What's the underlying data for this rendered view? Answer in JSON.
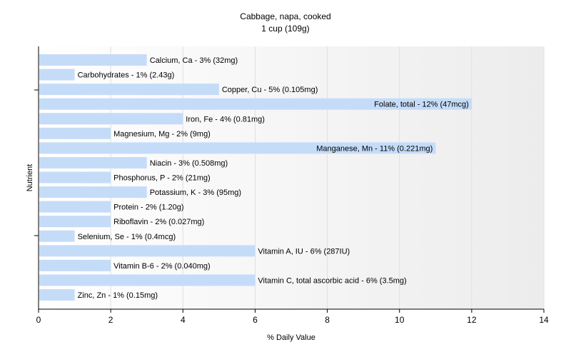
{
  "chart_data": {
    "type": "bar",
    "orientation": "horizontal",
    "title": "Cabbage, napa, cooked",
    "subtitle": "1 cup (109g)",
    "xlabel": "% Daily Value",
    "ylabel": "Nutrient",
    "xlim": [
      0,
      14
    ],
    "xticks": [
      0,
      2,
      4,
      6,
      8,
      10,
      12,
      14
    ],
    "grid": false,
    "legend": "none",
    "bar_color": "#c5dcf9",
    "categories": [
      "Calcium, Ca",
      "Carbohydrates",
      "Copper, Cu",
      "Folate, total",
      "Iron, Fe",
      "Magnesium, Mg",
      "Manganese, Mn",
      "Niacin",
      "Phosphorus, P",
      "Potassium, K",
      "Protein",
      "Riboflavin",
      "Selenium, Se",
      "Vitamin A, IU",
      "Vitamin B-6",
      "Vitamin C, total ascorbic acid",
      "Zinc, Zn"
    ],
    "values": [
      3,
      1,
      5,
      12,
      4,
      2,
      11,
      3,
      2,
      3,
      2,
      2,
      1,
      6,
      2,
      6,
      1
    ],
    "labels": [
      "Calcium, Ca - 3% (32mg)",
      "Carbohydrates - 1% (2.43g)",
      "Copper, Cu - 5% (0.105mg)",
      "Folate, total - 12% (47mcg)",
      "Iron, Fe - 4% (0.81mg)",
      "Magnesium, Mg - 2% (9mg)",
      "Manganese, Mn - 11% (0.221mg)",
      "Niacin - 3% (0.508mg)",
      "Phosphorus, P - 2% (21mg)",
      "Potassium, K - 3% (95mg)",
      "Protein - 2% (1.20g)",
      "Riboflavin - 2% (0.027mg)",
      "Selenium, Se - 1% (0.4mcg)",
      "Vitamin A, IU - 6% (287IU)",
      "Vitamin B-6 - 2% (0.040mg)",
      "Vitamin C, total ascorbic acid - 6% (3.5mg)",
      "Zinc, Zn - 1% (0.15mg)"
    ]
  }
}
